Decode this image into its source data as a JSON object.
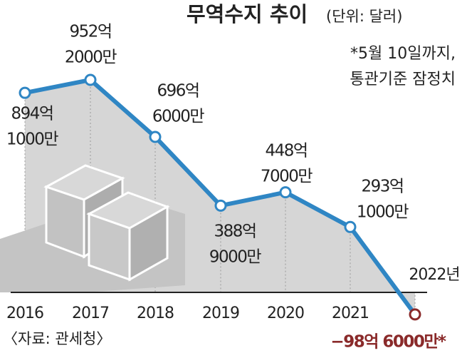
{
  "chart_data": {
    "type": "line",
    "title": "무역수지 추이",
    "subtitle": "(단위: 달러)",
    "note": [
      "*5월 10일까지,",
      "통관기준 잠정치"
    ],
    "source": "〈자료: 관세청〉",
    "categories": [
      "2016",
      "2017",
      "2018",
      "2019",
      "2020",
      "2021",
      "2022년"
    ],
    "series": [
      {
        "color": "#2f86c4",
        "values": [
          894.1,
          952.2,
          696.6,
          388.9,
          448.7,
          293.1,
          -98.6
        ],
        "value_labels": [
          [
            "894억",
            "1000만"
          ],
          [
            "952억",
            "2000만"
          ],
          [
            "696억",
            "6000만"
          ],
          [
            "388억",
            "9000만"
          ],
          [
            "448억",
            "7000만"
          ],
          [
            "293억",
            "1000만"
          ],
          [
            "−98억 6000만*"
          ]
        ]
      }
    ],
    "highlight_color": "#8a2a2a",
    "area_color": "#d6d6d6",
    "ylim": [
      -150,
      1310
    ]
  }
}
